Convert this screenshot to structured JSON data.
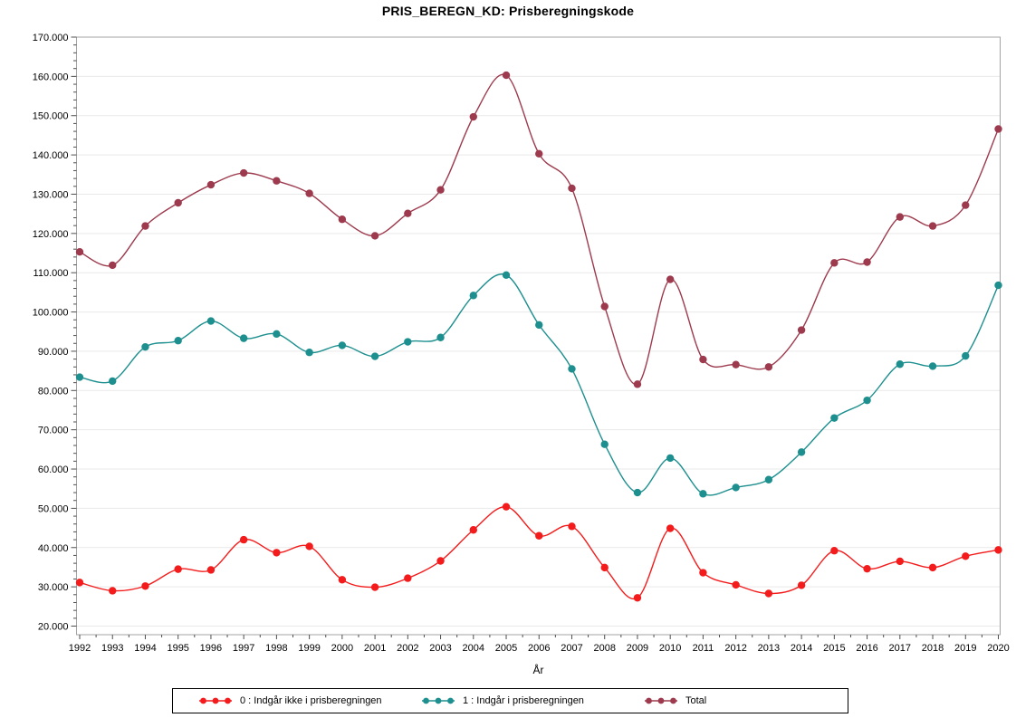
{
  "title": "PRIS_BEREGN_KD: Prisberegningskode",
  "chart_data": {
    "type": "line",
    "title": "PRIS_BEREGN_KD: Prisberegningskode",
    "xlabel": "År",
    "ylabel": "",
    "x": [
      "1992",
      "1993",
      "1994",
      "1995",
      "1996",
      "1997",
      "1998",
      "1999",
      "2000",
      "2001",
      "2002",
      "2003",
      "2004",
      "2005",
      "2006",
      "2007",
      "2008",
      "2009",
      "2010",
      "2011",
      "2012",
      "2013",
      "2014",
      "2015",
      "2016",
      "2017",
      "2018",
      "2019",
      "2020"
    ],
    "ylim": [
      20000,
      170000
    ],
    "ytick_step": 10000,
    "ytick_labels_top_to_bottom": [
      "170.000",
      "160.000",
      "150.000",
      "140.000",
      "130.000",
      "120.000",
      "110.000",
      "100.000",
      "90.000",
      "80.000",
      "70.000",
      "60.000",
      "50.000",
      "40.000",
      "30.000",
      "20.000"
    ],
    "grid": "horizontal",
    "legend_position": "bottom",
    "series": [
      {
        "name": "0 : Indgår ikke i prisberegningen",
        "color": "#f31b1b",
        "values": [
          31100,
          29000,
          30200,
          34500,
          34300,
          42000,
          38700,
          40300,
          31800,
          29900,
          32200,
          36600,
          44500,
          50400,
          43000,
          45400,
          34900,
          27200,
          44900,
          33600,
          30500,
          28300,
          30400,
          39200,
          34600,
          36500,
          34900,
          37800,
          39400
        ]
      },
      {
        "name": "1 : Indgår i prisberegningen",
        "color": "#1e8f8f",
        "values": [
          83400,
          82400,
          91100,
          92700,
          97700,
          93300,
          94400,
          89700,
          91500,
          88700,
          92400,
          93500,
          104200,
          109400,
          96700,
          85500,
          66300,
          54000,
          62800,
          53700,
          55300,
          57300,
          64300,
          73000,
          77500,
          86700,
          86200,
          88800,
          106800
        ]
      },
      {
        "name": "Total",
        "color": "#9d3a4d",
        "values": [
          115300,
          111900,
          121900,
          127800,
          132400,
          135400,
          133400,
          130200,
          123600,
          119400,
          125100,
          131100,
          149700,
          160300,
          140300,
          131500,
          101400,
          81600,
          108300,
          87900,
          86600,
          86000,
          95400,
          112500,
          112700,
          124200,
          121900,
          127200,
          146600
        ]
      }
    ],
    "style": {
      "grid_color": "#e9e9e9",
      "frame_color": "#a3a3a3",
      "tick_color": "#4d4d4d",
      "background": "#ffffff"
    }
  }
}
